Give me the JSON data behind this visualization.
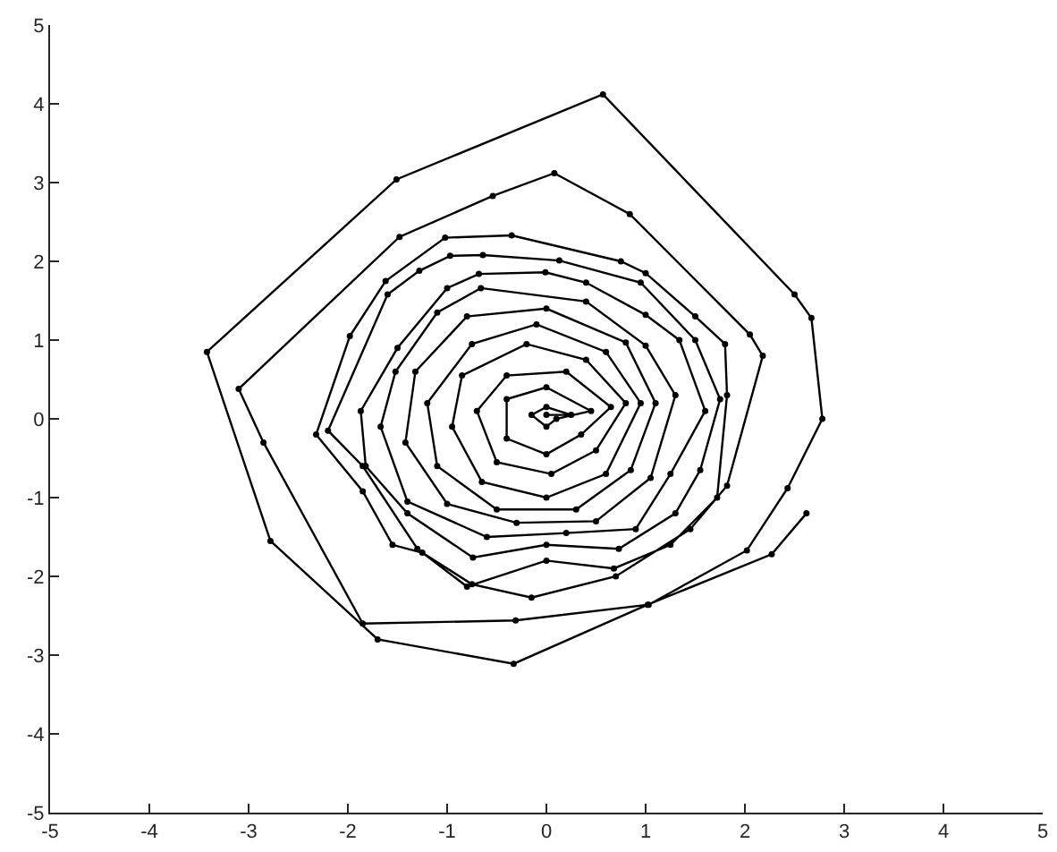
{
  "chart_data": {
    "type": "line",
    "marker": "circle",
    "line_style": "solid",
    "xlim": [
      -5,
      5
    ],
    "ylim": [
      -5,
      5
    ],
    "xticks": [
      -5,
      -4,
      -3,
      -2,
      -1,
      0,
      1,
      2,
      3,
      4,
      5
    ],
    "yticks": [
      -5,
      -4,
      -3,
      -2,
      -1,
      0,
      1,
      2,
      3,
      4,
      5
    ],
    "series": [
      {
        "color": "#000000",
        "x": [
          0.0,
          0.25,
          0.0,
          -0.15,
          0.0,
          0.1,
          0.45,
          0.0,
          -0.4,
          -0.4,
          0.0,
          0.35,
          0.65,
          0.2,
          -0.4,
          -0.7,
          -0.5,
          0.05,
          0.5,
          0.8,
          0.4,
          -0.2,
          -0.85,
          -0.95,
          -0.65,
          0.0,
          0.6,
          0.95,
          0.6,
          -0.1,
          -0.75,
          -1.2,
          -1.1,
          -0.5,
          0.3,
          0.85,
          1.1,
          0.8,
          0.0,
          -0.8,
          -1.32,
          -1.42,
          -1.0,
          -0.3,
          0.5,
          1.05,
          1.3,
          1.0,
          0.4,
          -0.66,
          -1.1,
          -1.52,
          -1.67,
          -1.4,
          -0.6,
          0.2,
          0.9,
          1.25,
          1.6,
          1.34,
          1.0,
          0.4,
          -0.01,
          -0.68,
          -1.0,
          -1.5,
          -1.87,
          -1.82,
          -1.4,
          -0.74,
          0.0,
          0.73,
          1.3,
          1.55,
          1.75,
          1.5,
          0.95,
          0.13,
          -0.64,
          -0.97,
          -1.28,
          -1.6,
          -2.2,
          -1.85,
          -1.3,
          -0.8,
          0.0,
          0.68,
          1.25,
          1.72,
          1.82,
          1.8,
          1.5,
          1.0,
          0.75,
          -0.35,
          -1.02,
          -1.62,
          -1.98,
          -2.32,
          -1.85,
          -1.55,
          -1.25,
          -0.75,
          -0.15,
          0.7,
          1.45,
          1.82,
          2.18,
          2.05,
          0.84,
          0.08,
          -0.54,
          -1.48,
          -3.1,
          -2.85,
          -1.85,
          -0.31,
          1.03,
          2.02,
          2.43,
          2.78,
          2.67,
          2.5,
          0.57,
          -1.51,
          -3.42,
          -2.78,
          -1.7,
          -0.33,
          1.02,
          2.27,
          2.62
        ],
        "values": [
          0.05,
          0.05,
          0.15,
          0.05,
          -0.1,
          0.0,
          0.1,
          0.4,
          0.25,
          -0.25,
          -0.45,
          -0.2,
          0.15,
          0.6,
          0.55,
          0.1,
          -0.55,
          -0.7,
          -0.4,
          0.2,
          0.75,
          0.95,
          0.55,
          -0.1,
          -0.8,
          -1.0,
          -0.7,
          0.2,
          0.85,
          1.2,
          0.95,
          0.2,
          -0.6,
          -1.15,
          -1.15,
          -0.65,
          0.2,
          0.97,
          1.4,
          1.3,
          0.6,
          -0.3,
          -1.08,
          -1.32,
          -1.3,
          -0.75,
          0.3,
          0.93,
          1.49,
          1.66,
          1.35,
          0.6,
          -0.1,
          -1.05,
          -1.5,
          -1.45,
          -1.4,
          -0.7,
          0.1,
          1.0,
          1.32,
          1.73,
          1.86,
          1.84,
          1.66,
          0.9,
          0.1,
          -0.6,
          -1.2,
          -1.76,
          -1.6,
          -1.65,
          -1.2,
          -0.65,
          0.25,
          1.0,
          1.73,
          2.01,
          2.08,
          2.07,
          1.88,
          1.58,
          -0.15,
          -0.6,
          -1.65,
          -2.13,
          -1.8,
          -1.9,
          -1.6,
          -1.0,
          0.3,
          0.95,
          1.3,
          1.85,
          2.0,
          2.33,
          2.3,
          1.75,
          1.05,
          -0.2,
          -0.92,
          -1.6,
          -1.7,
          -2.1,
          -2.27,
          -2.0,
          -1.4,
          -0.85,
          0.8,
          1.07,
          2.6,
          3.12,
          2.83,
          2.31,
          0.38,
          -0.3,
          -2.6,
          -2.56,
          -2.36,
          -1.67,
          -0.88,
          0.0,
          1.28,
          1.58,
          4.12,
          3.04,
          0.85,
          -1.55,
          -2.8,
          -3.11,
          -2.36,
          -1.72,
          -1.2
        ]
      }
    ]
  }
}
